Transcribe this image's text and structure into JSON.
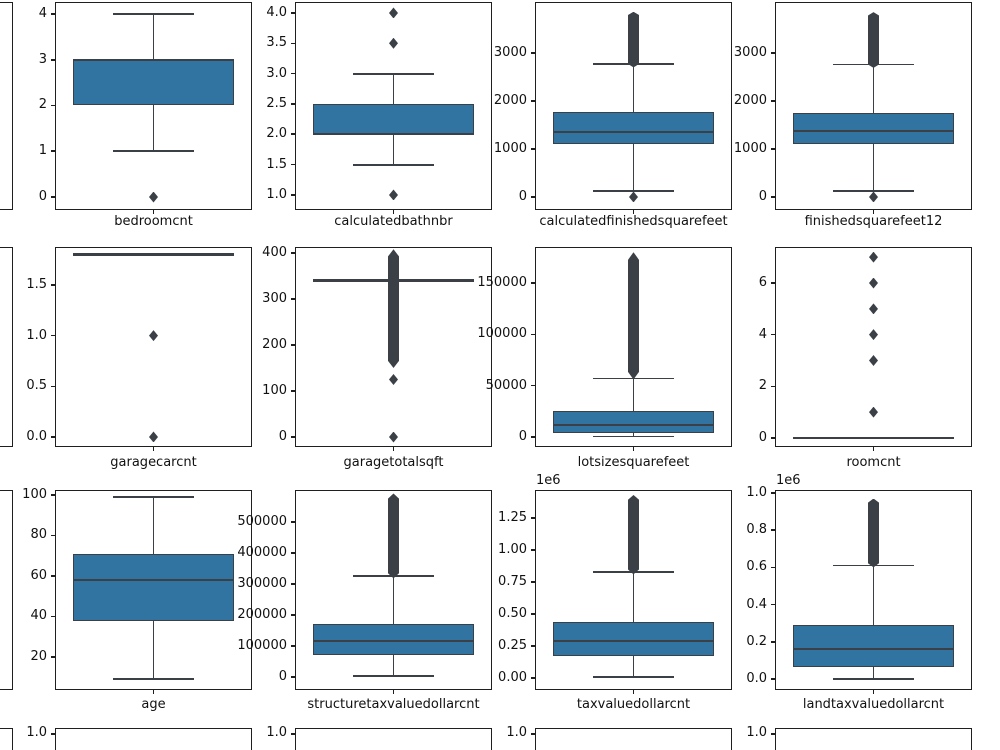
{
  "figure": {
    "kind": "matplotlib-boxplot-grid-screenshot",
    "background": "#ffffff",
    "partial_left_column_visible": true,
    "partial_bottom_row_visible": true
  },
  "chart_data": {
    "type": "bar",
    "subtype": "boxplot-grid",
    "title": "",
    "grid": {
      "visible_rows": 3,
      "visible_cols": 4,
      "partial_bottom_row": true,
      "partial_left_column": true
    },
    "colors": {
      "box_fill": "#3274a1",
      "box_line": "#3b4046",
      "spine": "#1f1f1f",
      "text": "#111111",
      "background": "#ffffff"
    },
    "subplots": [
      {
        "xlabel": "bedroomcnt",
        "ylim": [
          -0.284,
          4.262
        ],
        "ticks": [
          [
            0,
            "0"
          ],
          [
            1,
            "1"
          ],
          [
            2,
            "2"
          ],
          [
            3,
            "3"
          ],
          [
            4,
            "4"
          ]
        ],
        "box": {
          "q1": 2,
          "median": 3,
          "q3": 3,
          "whisker_low": 1,
          "whisker_high": 4
        },
        "outliers": [
          0
        ]
      },
      {
        "xlabel": "calculatedbathnbr",
        "ylim": [
          0.752,
          4.181
        ],
        "ticks": [
          [
            1,
            "1.0"
          ],
          [
            1.5,
            "1.5"
          ],
          [
            2,
            "2.0"
          ],
          [
            2.5,
            "2.5"
          ],
          [
            3,
            "3.0"
          ],
          [
            3.5,
            "3.5"
          ],
          [
            4,
            "4.0"
          ]
        ],
        "box": {
          "q1": 2.0,
          "median": 2.0,
          "q3": 2.5,
          "whisker_low": 1.5,
          "whisker_high": 3.0
        },
        "outliers": [
          1.0,
          3.5,
          4.0
        ]
      },
      {
        "xlabel": "calculatedfinishedsquarefeet",
        "ylim": [
          -271,
          4062
        ],
        "ticks": [
          [
            0,
            "0"
          ],
          [
            1000,
            "1000"
          ],
          [
            2000,
            "2000"
          ],
          [
            3000,
            "3000"
          ]
        ],
        "box": {
          "q1": 1100,
          "median": 1360,
          "q3": 1770,
          "whisker_low": 120,
          "whisker_high": 2770
        },
        "outliers": [
          0
        ],
        "outlier_run": [
          2700,
          3860
        ]
      },
      {
        "xlabel": "finishedsquarefeet12",
        "ylim": [
          -271,
          4062
        ],
        "ticks": [
          [
            0,
            "0"
          ],
          [
            1000,
            "1000"
          ],
          [
            2000,
            "2000"
          ],
          [
            3000,
            "3000"
          ]
        ],
        "box": {
          "q1": 1100,
          "median": 1370,
          "q3": 1760,
          "whisker_low": 130,
          "whisker_high": 2760
        },
        "outliers": [
          0
        ],
        "outlier_run": [
          2690,
          3850
        ]
      },
      {
        "xlabel": "garagecarcnt",
        "ylim": [
          -0.099,
          1.875
        ],
        "ticks": [
          [
            0,
            "0.0"
          ],
          [
            0.5,
            "0.5"
          ],
          [
            1,
            "1.0"
          ],
          [
            1.5,
            "1.5"
          ]
        ],
        "flat_line": 1.8,
        "outliers": [
          1,
          0
        ]
      },
      {
        "xlabel": "garagetotalsqft",
        "ylim": [
          -21.7,
          413
        ],
        "ticks": [
          [
            0,
            "0"
          ],
          [
            100,
            "100"
          ],
          [
            200,
            "200"
          ],
          [
            300,
            "300"
          ],
          [
            400,
            "400"
          ]
        ],
        "flat_line": 340,
        "outliers": [
          125,
          0
        ],
        "outlier_run": [
          150,
          408
        ]
      },
      {
        "xlabel": "lotsizesquarefeet",
        "ylim": [
          -9740,
          185065
        ],
        "ticks": [
          [
            0,
            "0"
          ],
          [
            50000,
            "50000"
          ],
          [
            100000,
            "100000"
          ],
          [
            150000,
            "150000"
          ]
        ],
        "box": {
          "q1": 4000,
          "median": 12000,
          "q3": 25000,
          "whisker_low": 500,
          "whisker_high": 57000
        },
        "outliers": [],
        "outlier_run": [
          56000,
          180000
        ]
      },
      {
        "xlabel": "roomcnt",
        "ylim": [
          -0.348,
          7.394
        ],
        "ticks": [
          [
            0,
            "0"
          ],
          [
            2,
            "2"
          ],
          [
            4,
            "4"
          ],
          [
            6,
            "6"
          ]
        ],
        "flat_line": 0,
        "outliers": [
          1,
          3,
          4,
          5,
          6,
          7
        ]
      },
      {
        "xlabel": "age",
        "ylim": [
          3.7,
          102.47
        ],
        "ticks": [
          [
            20,
            "20"
          ],
          [
            40,
            "40"
          ],
          [
            60,
            "60"
          ],
          [
            80,
            "80"
          ],
          [
            100,
            "100"
          ]
        ],
        "box": {
          "q1": 38,
          "median": 58,
          "q3": 71,
          "whisker_low": 9,
          "whisker_high": 99
        },
        "outliers": []
      },
      {
        "xlabel": "structuretaxvaluedollarcnt",
        "ylim": [
          -41935,
          603226
        ],
        "ticks": [
          [
            0,
            "0"
          ],
          [
            100000,
            "100000"
          ],
          [
            200000,
            "200000"
          ],
          [
            300000,
            "300000"
          ],
          [
            400000,
            "400000"
          ],
          [
            500000,
            "500000"
          ]
        ],
        "box": {
          "q1": 70000,
          "median": 115000,
          "q3": 172000,
          "whisker_low": 2000,
          "whisker_high": 325000
        },
        "outliers": [],
        "outlier_run": [
          318000,
          592000
        ]
      },
      {
        "xlabel": "taxvaluedollarcnt",
        "offset_label": "1e6",
        "ylim": [
          -0.094,
          1.469
        ],
        "ticks": [
          [
            0,
            "0.00"
          ],
          [
            0.25,
            "0.25"
          ],
          [
            0.5,
            "0.50"
          ],
          [
            0.75,
            "0.75"
          ],
          [
            1,
            "1.00"
          ],
          [
            1.25,
            "1.25"
          ]
        ],
        "box": {
          "q1": 0.17,
          "median": 0.29,
          "q3": 0.44,
          "whisker_low": 0.005,
          "whisker_high": 0.83
        },
        "outliers": [],
        "outlier_run": [
          0.81,
          1.43
        ]
      },
      {
        "xlabel": "landtaxvaluedollarcnt",
        "offset_label": "1e6",
        "ylim": [
          -0.059,
          1.016
        ],
        "ticks": [
          [
            0,
            "0.0"
          ],
          [
            0.2,
            "0.2"
          ],
          [
            0.4,
            "0.4"
          ],
          [
            0.6,
            "0.6"
          ],
          [
            0.8,
            "0.8"
          ],
          [
            1,
            "1.0"
          ]
        ],
        "box": {
          "q1": 0.065,
          "median": 0.16,
          "q3": 0.29,
          "whisker_low": 0.002,
          "whisker_high": 0.61
        },
        "outliers": [],
        "outlier_run": [
          0.6,
          0.97
        ]
      }
    ],
    "partial_bottom_row": {
      "tick_label": "1.0",
      "count": 4
    }
  }
}
